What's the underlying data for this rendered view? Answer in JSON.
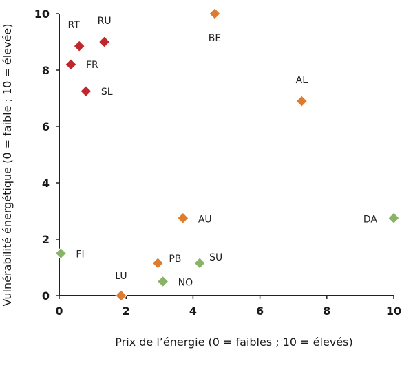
{
  "chart_data": {
    "type": "scatter",
    "title": "",
    "xlabel": "Prix de l’énergie (0 = faibles ; 10 = élevés)",
    "ylabel": "Vulnérabilité énergétique (0 = faible ; 10 = élevée)",
    "xlim": [
      0,
      10
    ],
    "ylim": [
      0,
      10
    ],
    "x_ticks": [
      0,
      2,
      4,
      6,
      8,
      10
    ],
    "y_ticks": [
      0,
      2,
      4,
      6,
      8,
      10
    ],
    "grid": false,
    "colors": {
      "red": "#c0272d",
      "orange": "#e07a2c",
      "green": "#8ab368"
    },
    "points": [
      {
        "label": "RT",
        "x": 0.6,
        "y": 8.85,
        "color": "red"
      },
      {
        "label": "RU",
        "x": 1.35,
        "y": 9.0,
        "color": "red"
      },
      {
        "label": "FR",
        "x": 0.35,
        "y": 8.2,
        "color": "red"
      },
      {
        "label": "SL",
        "x": 0.8,
        "y": 7.25,
        "color": "red"
      },
      {
        "label": "BE",
        "x": 4.65,
        "y": 10.0,
        "color": "orange"
      },
      {
        "label": "AL",
        "x": 7.25,
        "y": 6.9,
        "color": "orange"
      },
      {
        "label": "AU",
        "x": 3.7,
        "y": 2.75,
        "color": "orange"
      },
      {
        "label": "PB",
        "x": 2.95,
        "y": 1.15,
        "color": "orange"
      },
      {
        "label": "LU",
        "x": 1.85,
        "y": 0.0,
        "color": "orange"
      },
      {
        "label": "DA",
        "x": 10.0,
        "y": 2.75,
        "color": "green"
      },
      {
        "label": "FI",
        "x": 0.05,
        "y": 1.5,
        "color": "green"
      },
      {
        "label": "SU",
        "x": 4.2,
        "y": 1.15,
        "color": "green"
      },
      {
        "label": "NO",
        "x": 3.1,
        "y": 0.5,
        "color": "green"
      }
    ]
  }
}
